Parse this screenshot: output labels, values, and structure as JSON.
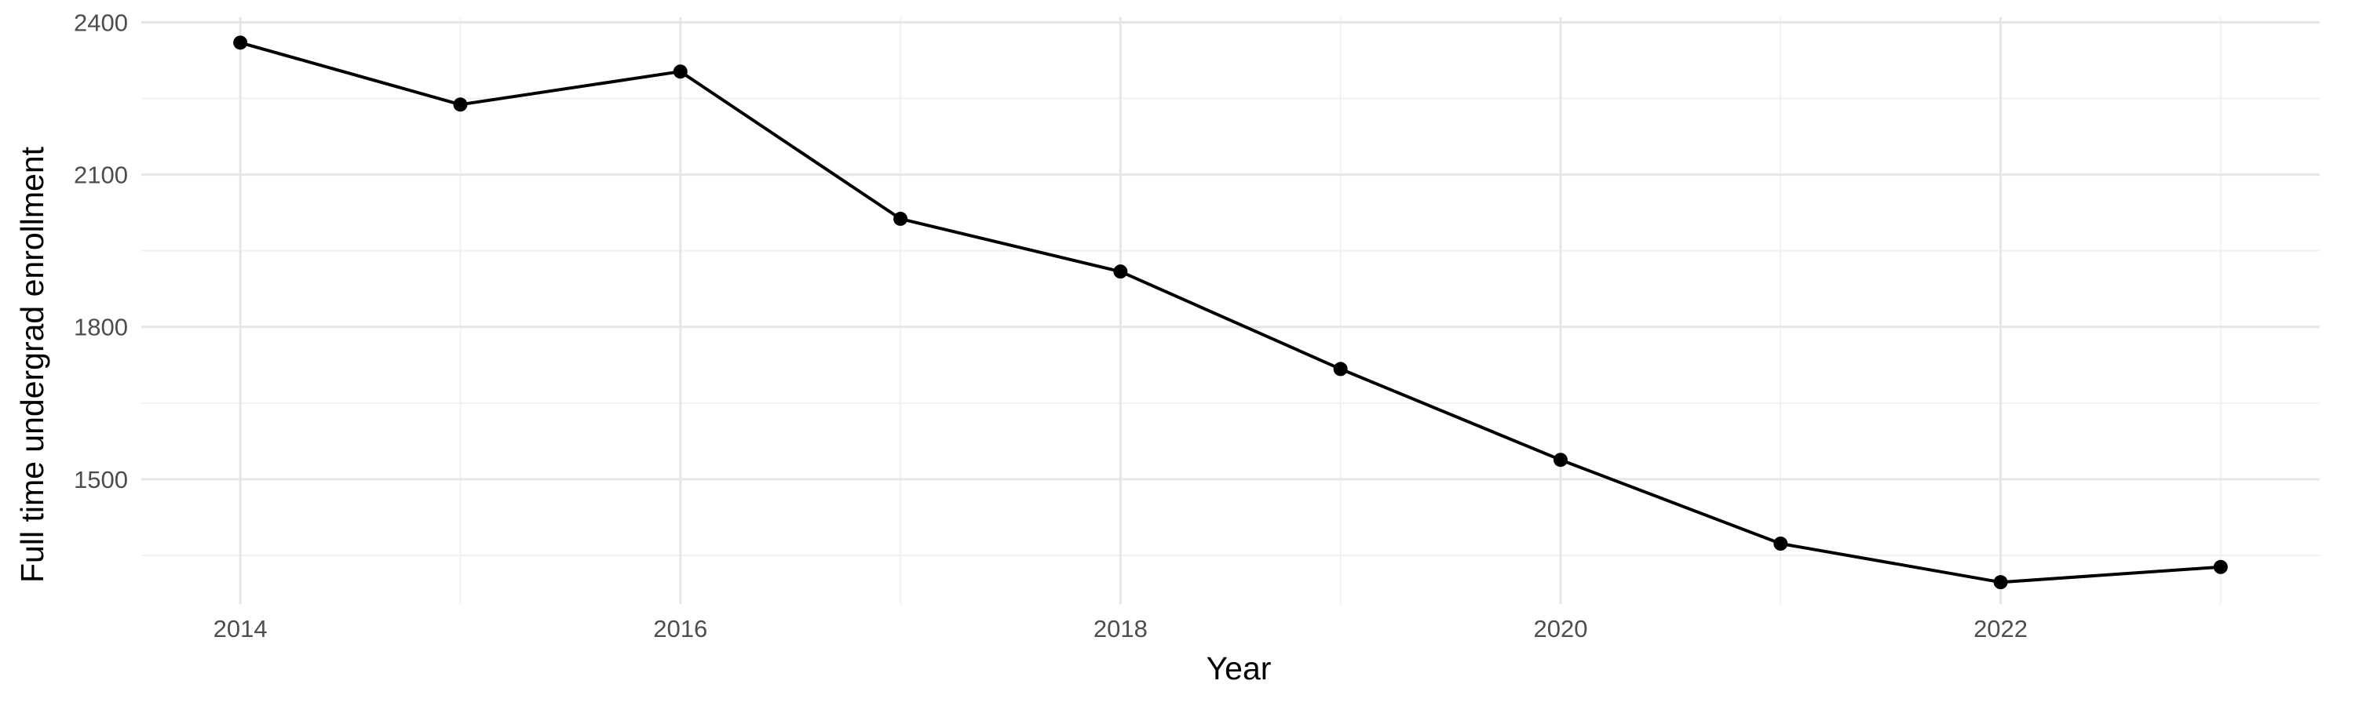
{
  "chart_data": {
    "type": "line",
    "title": "",
    "xlabel": "Year",
    "ylabel": "Full time undergrad enrollment",
    "x": [
      2014,
      2015,
      2016,
      2017,
      2018,
      2019,
      2020,
      2021,
      2022,
      2023
    ],
    "series": [
      {
        "values": [
          2360,
          2238,
          2303,
          2013,
          1909,
          1717,
          1538,
          1373,
          1297,
          1327
        ]
      }
    ],
    "xlim": [
      2013.55,
      2023.45
    ],
    "ylim": [
      1254,
      2410
    ],
    "xticks": [
      2014,
      2016,
      2018,
      2020,
      2022
    ],
    "xtick_labels": [
      "2014",
      "2016",
      "2018",
      "2020",
      "2022"
    ],
    "yticks": [
      1500,
      1800,
      2100,
      2400
    ],
    "ytick_labels": [
      "1500",
      "1800",
      "2100",
      "2400"
    ],
    "grid": true,
    "legend": "none",
    "colors": {
      "line": "#000000",
      "point": "#000000",
      "grid_major": "#e6e6e6",
      "grid_minor": "#f1f1f1",
      "tick_text": "#4d4d4d"
    }
  }
}
